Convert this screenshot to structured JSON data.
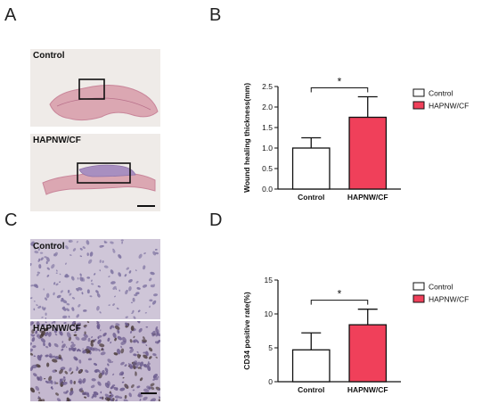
{
  "panels": {
    "a": {
      "letter": "A",
      "top_label": "Control",
      "bottom_label": "HAPNW/CF"
    },
    "c": {
      "letter": "C",
      "top_label": "Control",
      "bottom_label": "HAPNW/CF"
    },
    "b": {
      "letter": "B"
    },
    "d": {
      "letter": "D"
    }
  },
  "colors": {
    "control": "#ffffff",
    "hapnw": "#f0405a",
    "tissue_bg": "#efebe8",
    "he_stain": "#dba7b2",
    "ihc_bg": "#cfc6d8"
  },
  "chart_data": [
    {
      "id": "b",
      "type": "bar",
      "categories": [
        "Control",
        "HAPNW/CF"
      ],
      "values": [
        1.0,
        1.75
      ],
      "errors": [
        0.25,
        0.5
      ],
      "ylabel": "Wound healing thickness(mm)",
      "ylim": [
        0,
        2.5
      ],
      "yticks": [
        "0.0",
        "0.5",
        "1.0",
        "1.5",
        "2.0",
        "2.5"
      ],
      "significance": "*",
      "legend": [
        "Control",
        "HAPNW/CF"
      ],
      "legend_position": "right"
    },
    {
      "id": "d",
      "type": "bar",
      "categories": [
        "Control",
        "HAPNW/CF"
      ],
      "values": [
        4.7,
        8.4
      ],
      "errors": [
        2.5,
        2.3
      ],
      "ylabel": "CD34 positive rate(%)",
      "ylim": [
        0,
        15
      ],
      "yticks": [
        "0",
        "5",
        "10",
        "15"
      ],
      "significance": "*",
      "legend": [
        "Control",
        "HAPNW/CF"
      ],
      "legend_position": "right"
    }
  ]
}
